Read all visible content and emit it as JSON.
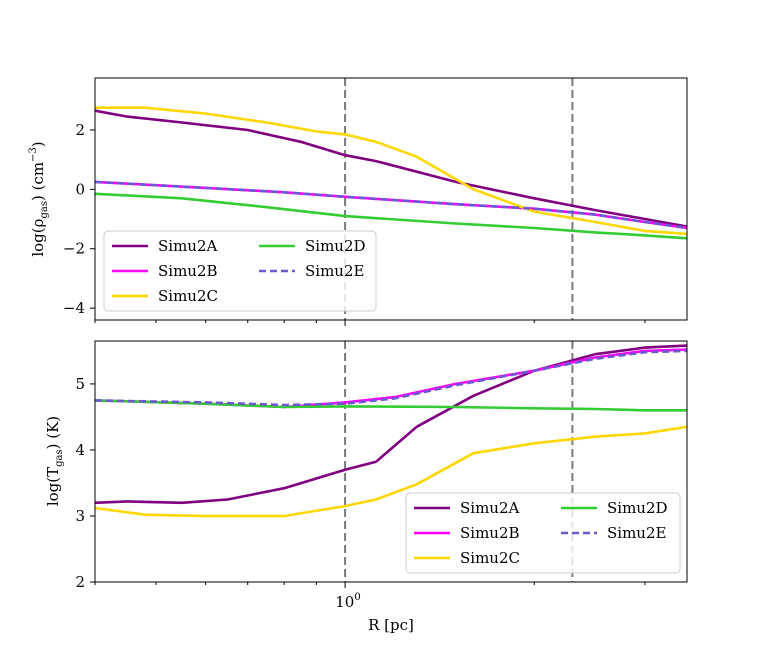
{
  "chart_data": [
    {
      "type": "line",
      "panel": "top",
      "xscale": "log",
      "xlim": [
        0.4,
        3.5
      ],
      "ylim": [
        -4.4,
        3.75
      ],
      "ylabel_text": "log(ρ",
      "ylabel_sub": "gas",
      "ylabel_unit": ") (cm",
      "ylabel_sup": "−3",
      "ylabel_close": ")",
      "xlabel": "",
      "yticks": [
        2,
        0,
        -2,
        -4
      ],
      "ytick_labels": [
        "2",
        "0",
        "−2",
        "−4"
      ],
      "vlines": [
        1.0,
        2.3
      ],
      "legend_loc": "lower-left",
      "series": [
        {
          "name": "Simu2A",
          "color": "#800080",
          "dash": "",
          "x": [
            0.4,
            0.45,
            0.55,
            0.7,
            0.85,
            1.0,
            1.12,
            1.5,
            2.0,
            2.5,
            3.0,
            3.5
          ],
          "y": [
            2.65,
            2.45,
            2.25,
            2.0,
            1.6,
            1.15,
            0.95,
            0.25,
            -0.3,
            -0.7,
            -1.0,
            -1.25
          ]
        },
        {
          "name": "Simu2B",
          "color": "#ff00ff",
          "dash": "",
          "x": [
            0.4,
            0.6,
            0.8,
            1.0,
            1.5,
            2.0,
            2.5,
            3.0,
            3.5
          ],
          "y": [
            0.25,
            0.05,
            -0.1,
            -0.25,
            -0.5,
            -0.65,
            -0.85,
            -1.1,
            -1.3
          ]
        },
        {
          "name": "Simu2C",
          "color": "#ffd700",
          "dash": "",
          "x": [
            0.4,
            0.48,
            0.6,
            0.75,
            0.9,
            1.0,
            1.12,
            1.3,
            1.6,
            2.0,
            2.5,
            3.0,
            3.5
          ],
          "y": [
            2.75,
            2.75,
            2.55,
            2.25,
            1.95,
            1.85,
            1.6,
            1.1,
            0.0,
            -0.75,
            -1.1,
            -1.4,
            -1.5
          ]
        },
        {
          "name": "Simu2D",
          "color": "#33cc33",
          "dash": "",
          "x": [
            0.4,
            0.55,
            0.75,
            1.0,
            1.5,
            2.0,
            2.5,
            3.0,
            3.5
          ],
          "y": [
            -0.15,
            -0.3,
            -0.6,
            -0.9,
            -1.15,
            -1.3,
            -1.45,
            -1.55,
            -1.65
          ]
        },
        {
          "name": "Simu2E",
          "color": "#6a5acd",
          "dash": "7,4",
          "x": [
            0.4,
            0.6,
            0.8,
            1.0,
            1.5,
            2.0,
            2.5,
            3.0,
            3.5
          ],
          "y": [
            0.25,
            0.05,
            -0.1,
            -0.25,
            -0.5,
            -0.65,
            -0.85,
            -1.1,
            -1.3
          ]
        }
      ]
    },
    {
      "type": "line",
      "panel": "bottom",
      "xscale": "log",
      "xlim": [
        0.4,
        3.5
      ],
      "ylim": [
        2.0,
        5.65
      ],
      "ylabel_text": "log(T",
      "ylabel_sub": "gas",
      "ylabel_unit": ") (K)",
      "xlabel": "R [pc]",
      "yticks": [
        5,
        4,
        3,
        2
      ],
      "ytick_labels": [
        "5",
        "4",
        "3",
        "2"
      ],
      "xtick_base": "10",
      "xtick_exp": "0",
      "vlines": [
        1.0,
        2.3
      ],
      "legend_loc": "lower-right",
      "series": [
        {
          "name": "Simu2A",
          "color": "#800080",
          "dash": "",
          "x": [
            0.4,
            0.45,
            0.55,
            0.65,
            0.8,
            1.0,
            1.12,
            1.3,
            1.6,
            2.0,
            2.5,
            3.0,
            3.5
          ],
          "y": [
            3.2,
            3.22,
            3.2,
            3.25,
            3.42,
            3.7,
            3.82,
            4.35,
            4.82,
            5.2,
            5.45,
            5.55,
            5.58
          ]
        },
        {
          "name": "Simu2B",
          "color": "#ff00ff",
          "dash": "",
          "x": [
            0.4,
            0.6,
            0.8,
            1.0,
            1.2,
            1.5,
            2.0,
            2.5,
            3.0,
            3.5
          ],
          "y": [
            4.75,
            4.7,
            4.65,
            4.72,
            4.8,
            5.0,
            5.2,
            5.4,
            5.5,
            5.52
          ]
        },
        {
          "name": "Simu2C",
          "color": "#ffd700",
          "dash": "",
          "x": [
            0.4,
            0.48,
            0.6,
            0.8,
            1.0,
            1.12,
            1.3,
            1.6,
            2.0,
            2.5,
            3.0,
            3.5
          ],
          "y": [
            3.12,
            3.02,
            3.0,
            3.0,
            3.15,
            3.25,
            3.48,
            3.95,
            4.1,
            4.2,
            4.25,
            4.35
          ]
        },
        {
          "name": "Simu2D",
          "color": "#33cc33",
          "dash": "",
          "x": [
            0.4,
            0.6,
            0.8,
            1.0,
            1.5,
            2.0,
            2.5,
            3.0,
            3.5
          ],
          "y": [
            4.75,
            4.7,
            4.65,
            4.66,
            4.65,
            4.63,
            4.62,
            4.6,
            4.6
          ]
        },
        {
          "name": "Simu2E",
          "color": "#6a5acd",
          "dash": "7,4",
          "x": [
            0.4,
            0.6,
            0.8,
            1.0,
            1.2,
            1.5,
            2.0,
            2.5,
            3.0,
            3.5
          ],
          "y": [
            4.75,
            4.72,
            4.68,
            4.7,
            4.78,
            4.98,
            5.2,
            5.38,
            5.48,
            5.5
          ]
        }
      ]
    }
  ]
}
